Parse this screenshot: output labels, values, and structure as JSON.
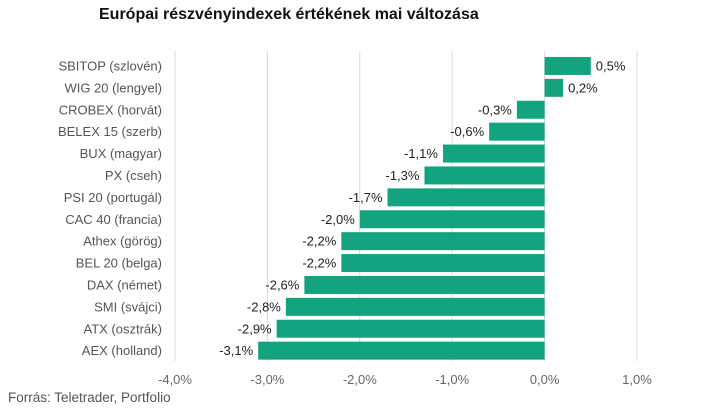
{
  "title": "Európai részvényindexek értékének mai változása",
  "source": "Forrás: Teletrader, Portfolio",
  "colors": {
    "bar": "#14a37f",
    "grid": "#d9d9d9"
  },
  "chart_data": {
    "type": "bar",
    "orientation": "horizontal",
    "title": "Európai részvényindexek értékének mai változása",
    "categories": [
      "SBITOP (szlovén)",
      "WIG 20 (lengyel)",
      "CROBEX (horvát)",
      "BELEX 15 (szerb)",
      "BUX (magyar)",
      "PX (cseh)",
      "PSI 20 (portugál)",
      "CAC 40 (francia)",
      "Athex (görög)",
      "BEL 20 (belga)",
      "DAX (német)",
      "SMI (svájci)",
      "ATX (osztrák)",
      "AEX (holland)"
    ],
    "values": [
      0.5,
      0.2,
      -0.3,
      -0.6,
      -1.1,
      -1.3,
      -1.7,
      -2.0,
      -2.2,
      -2.2,
      -2.6,
      -2.8,
      -2.9,
      -3.1
    ],
    "data_labels": [
      "0,5%",
      "0,2%",
      "-0,3%",
      "-0,6%",
      "-1,1%",
      "-1,3%",
      "-1,7%",
      "-2,0%",
      "-2,2%",
      "-2,2%",
      "-2,6%",
      "-2,8%",
      "-2,9%",
      "-3,1%"
    ],
    "xlim": [
      -4.0,
      1.0
    ],
    "xticks": [
      -4.0,
      -3.0,
      -2.0,
      -1.0,
      0.0,
      1.0
    ],
    "xtick_labels": [
      "-4,0%",
      "-3,0%",
      "-2,0%",
      "-1,0%",
      "0,0%",
      "1,0%"
    ],
    "grid": true,
    "legend": "none"
  }
}
